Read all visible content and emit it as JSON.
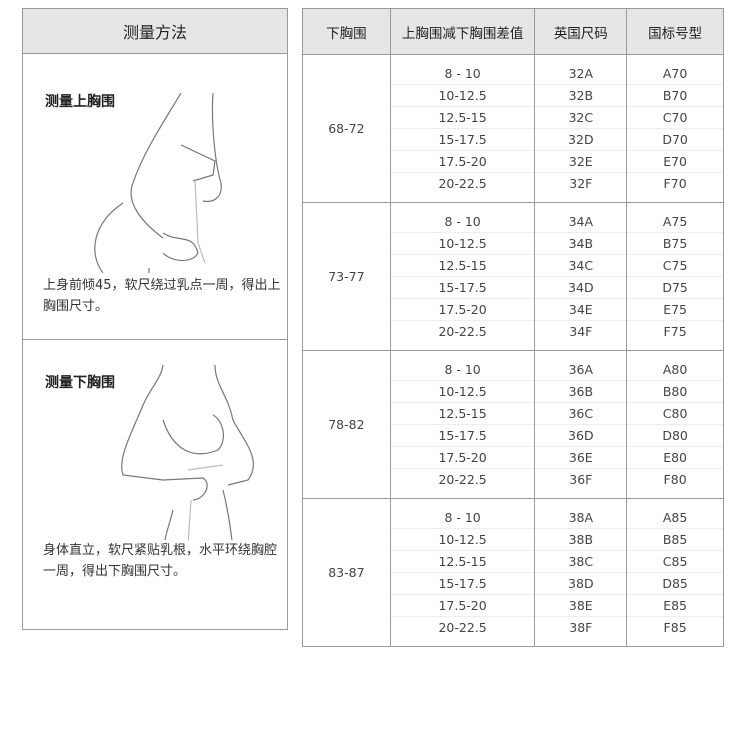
{
  "left": {
    "header": "测量方法",
    "upper": {
      "title": "测量上胸围",
      "desc": "上身前倾45，软尺绕过乳点一周，得出上胸围尺寸。"
    },
    "lower": {
      "title": "测量下胸围",
      "desc": "身体直立，软尺紧贴乳根，水平环绕胸腔一周，得出下胸围尺寸。"
    }
  },
  "table": {
    "headers": [
      "下胸围",
      "上胸围减下胸围差值",
      "英国尺码",
      "国标号型"
    ],
    "groups": [
      {
        "under": "68-72",
        "diff": [
          "8 - 10",
          "10-12.5",
          "12.5-15",
          "15-17.5",
          "17.5-20",
          "20-22.5"
        ],
        "uk": [
          "32A",
          "32B",
          "32C",
          "32D",
          "32E",
          "32F"
        ],
        "cn": [
          "A70",
          "B70",
          "C70",
          "D70",
          "E70",
          "F70"
        ]
      },
      {
        "under": "73-77",
        "diff": [
          "8 - 10",
          "10-12.5",
          "12.5-15",
          "15-17.5",
          "17.5-20",
          "20-22.5"
        ],
        "uk": [
          "34A",
          "34B",
          "34C",
          "34D",
          "34E",
          "34F"
        ],
        "cn": [
          "A75",
          "B75",
          "C75",
          "D75",
          "E75",
          "F75"
        ]
      },
      {
        "under": "78-82",
        "diff": [
          "8 - 10",
          "10-12.5",
          "12.5-15",
          "15-17.5",
          "17.5-20",
          "20-22.5"
        ],
        "uk": [
          "36A",
          "36B",
          "36C",
          "36D",
          "36E",
          "36F"
        ],
        "cn": [
          "A80",
          "B80",
          "C80",
          "D80",
          "E80",
          "F80"
        ]
      },
      {
        "under": "83-87",
        "diff": [
          "8 - 10",
          "10-12.5",
          "12.5-15",
          "15-17.5",
          "17.5-20",
          "20-22.5"
        ],
        "uk": [
          "38A",
          "38B",
          "38C",
          "38D",
          "38E",
          "38F"
        ],
        "cn": [
          "A85",
          "B85",
          "C85",
          "D85",
          "E85",
          "F85"
        ]
      }
    ]
  }
}
